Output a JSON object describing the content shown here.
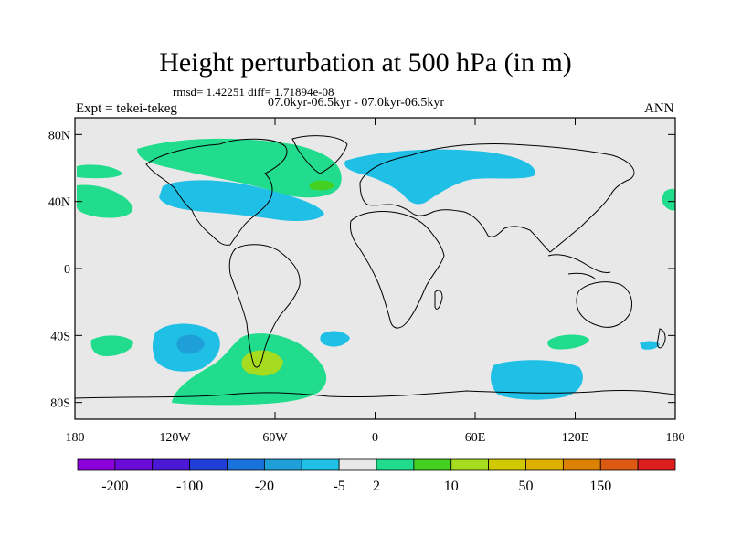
{
  "header": {
    "title": "Height perturbation at 500 hPa (in m)",
    "stats": "rmsd= 1.42251 diff= 1.71894e-08",
    "period": "07.0kyr-06.5kyr - 07.0kyr-06.5kyr",
    "experiment": "Expt = tekei-tekeg",
    "season": "ANN"
  },
  "map": {
    "background_color": "#e8e8e8",
    "coastline_color": "#000000",
    "x_ticks": [
      {
        "lon": -180,
        "label": "180"
      },
      {
        "lon": -120,
        "label": "120W"
      },
      {
        "lon": -60,
        "label": "60W"
      },
      {
        "lon": 0,
        "label": "0"
      },
      {
        "lon": 60,
        "label": "60E"
      },
      {
        "lon": 120,
        "label": "120E"
      },
      {
        "lon": 180,
        "label": "180"
      }
    ],
    "y_ticks": [
      {
        "lat": 80,
        "label": "80N"
      },
      {
        "lat": 40,
        "label": "40N"
      },
      {
        "lat": 0,
        "label": "0"
      },
      {
        "lat": -40,
        "label": "40S"
      },
      {
        "lat": -80,
        "label": "80S"
      }
    ],
    "lon_range": [
      -180,
      180
    ],
    "lat_range": [
      -90,
      90
    ]
  },
  "colorbar": {
    "colors": [
      "#8c00dc",
      "#6a0ad8",
      "#4b18d6",
      "#1f3fd8",
      "#1a72dc",
      "#1e9fd8",
      "#20c0e6",
      "#e8e8e8",
      "#20dc8c",
      "#44d020",
      "#a6dc20",
      "#d0c800",
      "#dcb000",
      "#dc8200",
      "#dc5a14",
      "#dc1e1e"
    ],
    "labels": [
      "-200",
      "-100",
      "-20",
      "-5",
      "2",
      "10",
      "50",
      "150"
    ],
    "label_boundaries": [
      1,
      3,
      5,
      7,
      8,
      10,
      12,
      14
    ]
  }
}
